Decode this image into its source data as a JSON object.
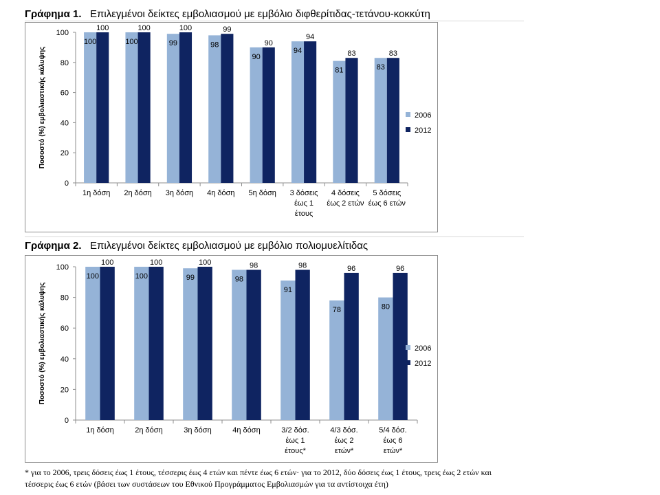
{
  "colors": {
    "s2006": "#95b3d7",
    "s2012": "#0f2461",
    "axis": "#8c8c8c"
  },
  "charts": [
    {
      "label": "Γράφημα 1.",
      "title": "Επιλεγμένοι δείκτες εμβολιασμού με εμβόλιο διφθερίτιδας-τετάνου-κοκκύτη"
    },
    {
      "label": "Γράφημα 2.",
      "title": "Επιλεγμένοι δείκτες εμβολιασμού με εμβόλιο πολιομυελίτιδας"
    }
  ],
  "footnote": "* για το 2006, τρεις δόσεις έως 1 έτους, τέσσερις έως 4 ετών και πέντε έως 6 ετών· για το 2012, δύο δόσεις έως 1 έτους, τρεις έως 2 ετών και τέσσερις έως 6 ετών (βάσει των συστάσεων του Εθνικού Προγράμματος Εμβολιασμών για τα αντίστοιχα έτη)",
  "chart_data": [
    {
      "type": "bar",
      "ylabel": "Ποσοστό (%) εμβολιαστικής κάλυψης",
      "ylim": [
        0,
        100
      ],
      "yticks": [
        "0",
        "20",
        "40",
        "60",
        "80",
        "100"
      ],
      "categories": [
        [
          "1η δόση"
        ],
        [
          "2η δόση"
        ],
        [
          "3η δόση"
        ],
        [
          "4η δόση"
        ],
        [
          "5η δόση"
        ],
        [
          "3 δόσεις",
          "έως 1",
          "έτους"
        ],
        [
          "4 δόσεις",
          "έως 2 ετών"
        ],
        [
          "5 δόσεις",
          "έως 6 ετών"
        ]
      ],
      "series": [
        {
          "name": "2006",
          "values": [
            100,
            100,
            99,
            98,
            90,
            94,
            81,
            83
          ]
        },
        {
          "name": "2012",
          "values": [
            100,
            100,
            100,
            99,
            90,
            94,
            83,
            83
          ]
        }
      ],
      "legend": "right"
    },
    {
      "type": "bar",
      "ylabel": "Ποσοστό (%) εμβολιαστικής κάλυψης",
      "ylim": [
        0,
        100
      ],
      "yticks": [
        "0",
        "20",
        "40",
        "60",
        "80",
        "100"
      ],
      "categories": [
        [
          "1η δόση"
        ],
        [
          "2η δόση"
        ],
        [
          "3η δόση"
        ],
        [
          "4η δόση"
        ],
        [
          "3/2 δόσ.",
          "έως 1",
          "έτους*"
        ],
        [
          "4/3 δόσ.",
          "έως 2",
          "ετών*"
        ],
        [
          "5/4 δόσ.",
          "έως 6",
          "ετών*"
        ]
      ],
      "series": [
        {
          "name": "2006",
          "values": [
            100,
            100,
            99,
            98,
            91,
            78,
            80
          ]
        },
        {
          "name": "2012",
          "values": [
            100,
            100,
            100,
            98,
            98,
            96,
            96
          ]
        }
      ],
      "legend": "right"
    }
  ]
}
